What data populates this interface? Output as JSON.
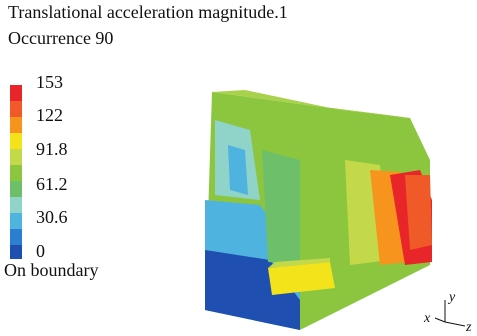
{
  "header": {
    "title": "Translational acceleration magnitude.1",
    "subtitle": "Occurrence 90"
  },
  "legend": {
    "ticks": [
      153,
      122,
      91.8,
      61.2,
      30.6,
      0
    ],
    "note": "On boundary"
  },
  "axes": {
    "x": "x",
    "y": "y",
    "z": "z"
  }
}
